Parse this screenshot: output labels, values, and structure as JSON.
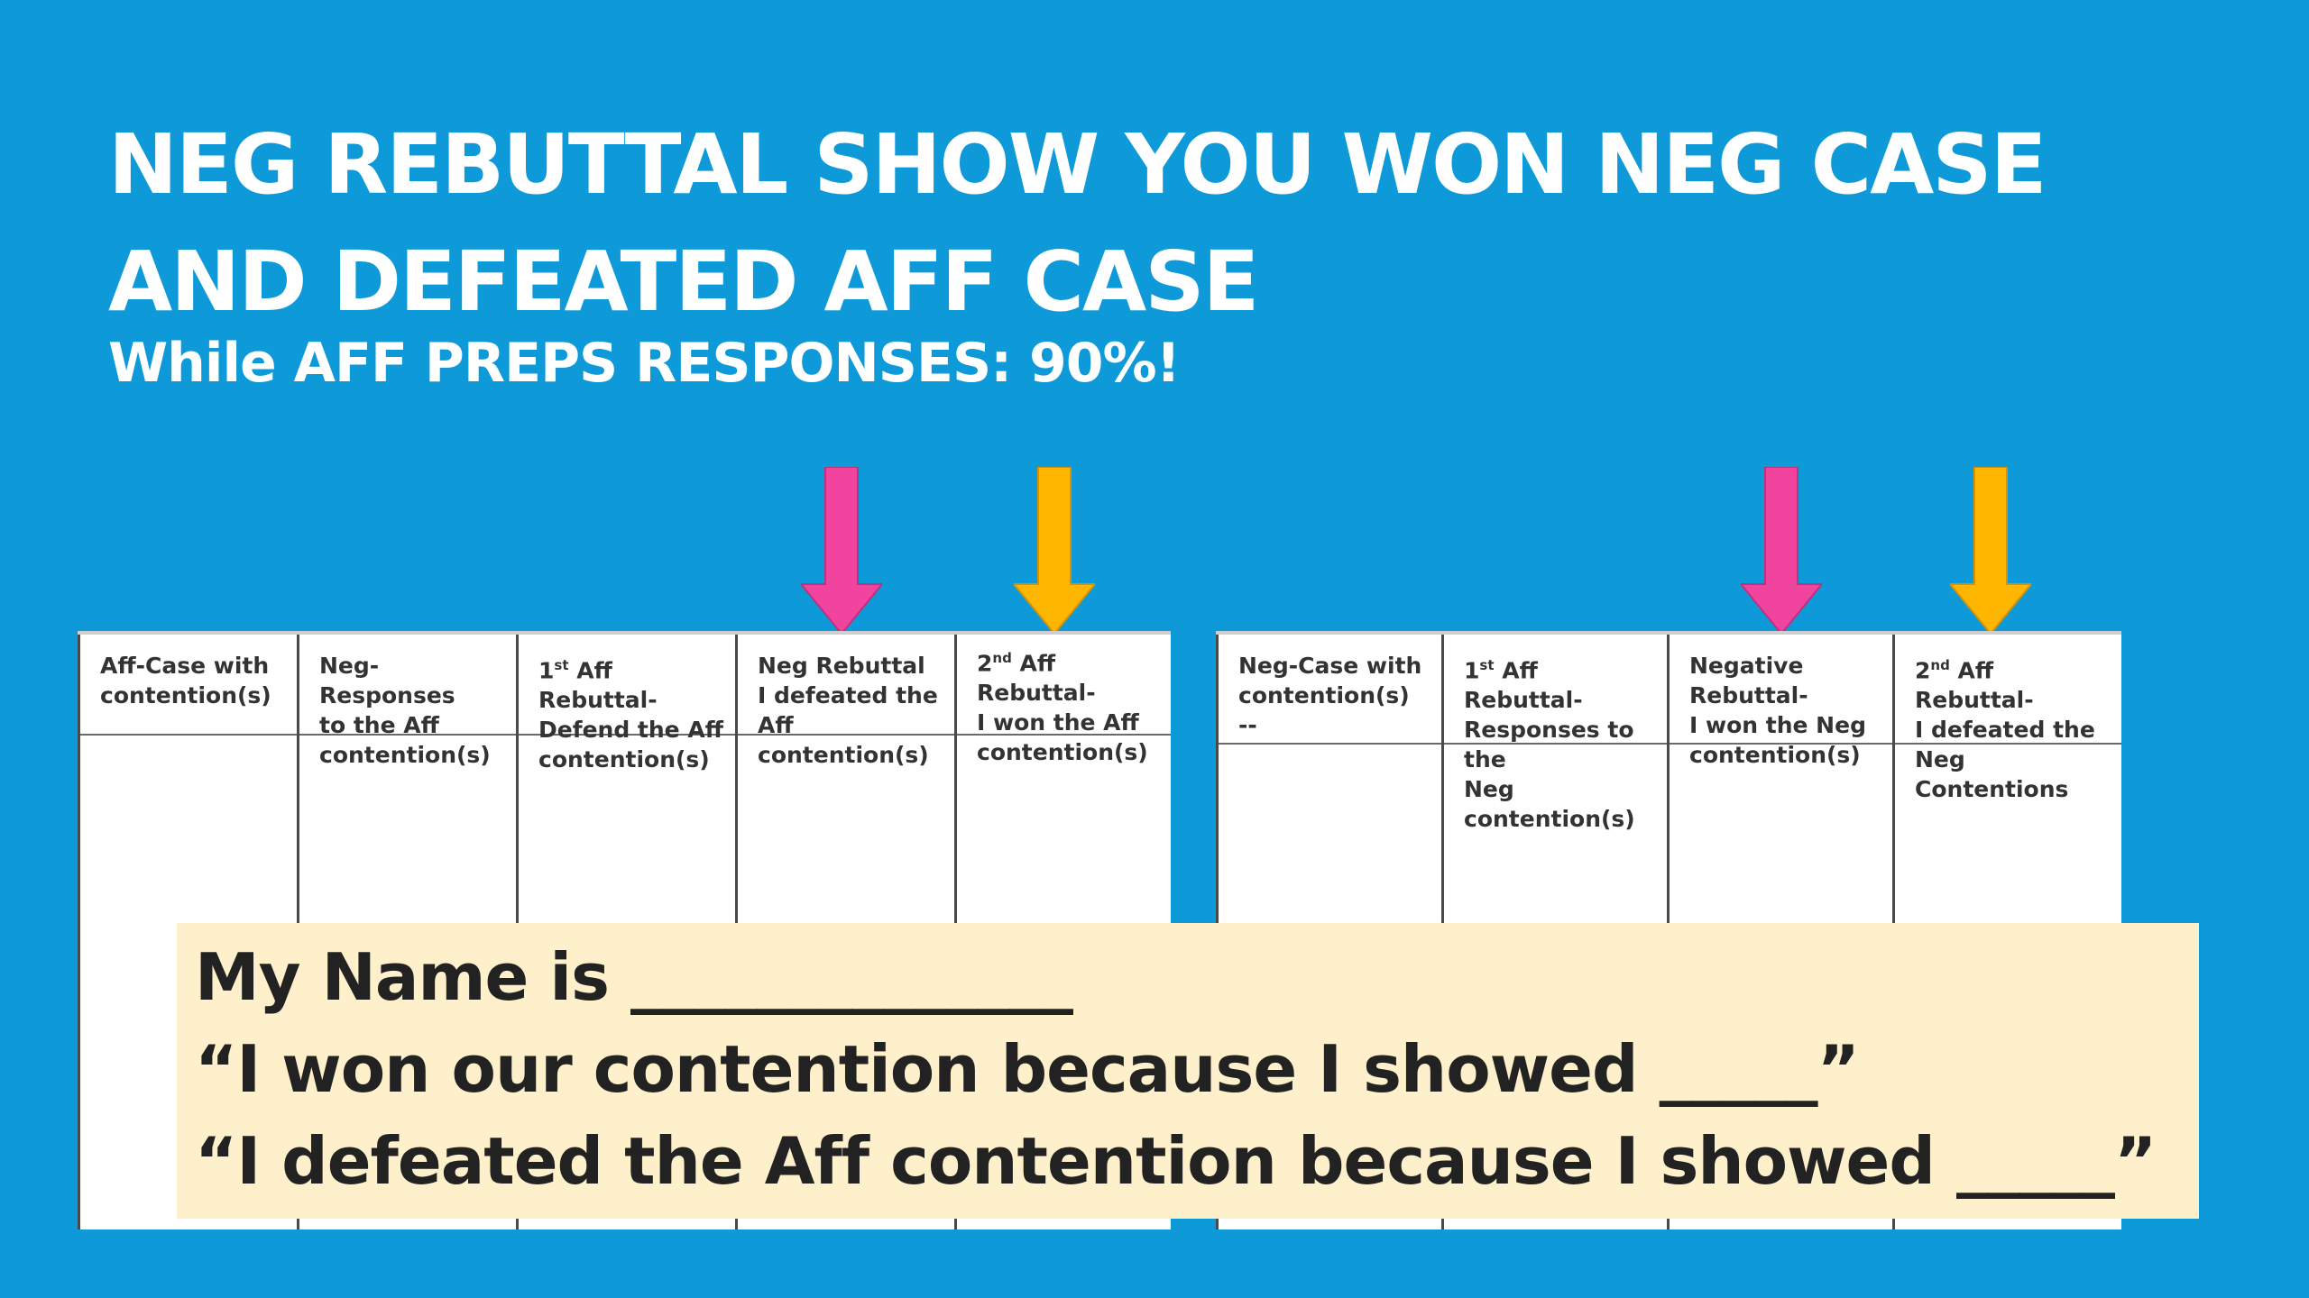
{
  "slide": {
    "title_line1": "NEG REBUTTAL SHOW YOU WON NEG CASE",
    "title_line2": "AND DEFEATED AFF CASE",
    "subtitle": "While AFF PREPS RESPONSES: 90%!"
  },
  "colors": {
    "background": "#0e9ad9",
    "arrow_pink": "#f0449e",
    "arrow_yellow": "#ffb600",
    "callout_bg": "#fff0cc"
  },
  "aff_flow": {
    "columns": [
      {
        "label": "Aff-Case with\ncontention(s)"
      },
      {
        "label": "Neg-Responses\nto the Aff\ncontention(s)"
      },
      {
        "ordinal": "1",
        "ordinal_suffix": "st",
        "label": " Aff Rebuttal-\nDefend the Aff\ncontention(s)"
      },
      {
        "label": "Neg Rebuttal\nI defeated the\nAff contention(s)"
      },
      {
        "ordinal": "2",
        "ordinal_suffix": "nd",
        "label": " Aff Rebuttal-\nI won the Aff\ncontention(s)"
      }
    ]
  },
  "neg_flow": {
    "columns": [
      {
        "label": "Neg-Case with\ncontention(s)\n--"
      },
      {
        "ordinal": "1",
        "ordinal_suffix": "st",
        "label": " Aff Rebuttal-\nResponses to the\nNeg contention(s)"
      },
      {
        "label": "Negative\nRebuttal-\nI won the Neg\ncontention(s)"
      },
      {
        "ordinal": "2",
        "ordinal_suffix": "nd",
        "label": " Aff Rebuttal-\nI defeated the Neg\nContentions"
      }
    ]
  },
  "callout": {
    "line1": "My Name is ______________",
    "line2": "“I won our contention because I showed _____”",
    "line3": "“I defeated the Aff contention because I showed _____”"
  }
}
